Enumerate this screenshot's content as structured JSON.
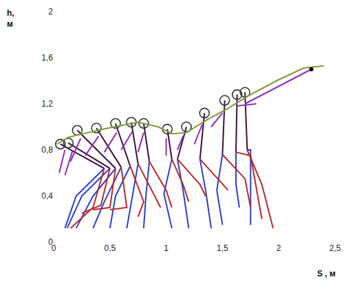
{
  "chart_data": {
    "type": "line",
    "x_label": "S , м",
    "y_label": "h, м",
    "xlim": [
      0,
      2.5
    ],
    "ylim": [
      0,
      2
    ],
    "xticks": [
      0,
      {
        "value": 0.5,
        "label": "0,5"
      },
      1,
      {
        "value": 1.5,
        "label": "1,5"
      },
      2,
      {
        "value": 2.5,
        "label": "2,5"
      }
    ],
    "yticks": [
      0,
      {
        "value": 0.4,
        "label": "0,4"
      },
      {
        "value": 0.8,
        "label": "0,8"
      },
      {
        "value": 1.2,
        "label": "1,2"
      },
      {
        "value": 1.6,
        "label": "1,6"
      },
      2
    ],
    "grid": false,
    "series": [
      {
        "type": "line",
        "color": "#3b0f3b",
        "line_style": "solid",
        "x": [
          0.06,
          0.45,
          null,
          0.13,
          0.5,
          null,
          0.21,
          0.55,
          null,
          0.38,
          0.6,
          null,
          0.55,
          0.68,
          null,
          0.69,
          0.75,
          null,
          0.8,
          0.85,
          null,
          1.01,
          1.05,
          null,
          1.18,
          1.1,
          null,
          1.34,
          1.3,
          null,
          1.52,
          1.5,
          null,
          1.63,
          1.62,
          null,
          1.7,
          1.72
        ],
        "values": [
          0.85,
          0.64,
          null,
          0.86,
          0.64,
          null,
          0.97,
          0.64,
          null,
          0.99,
          0.65,
          null,
          1.03,
          0.66,
          null,
          1.04,
          0.68,
          null,
          1.03,
          0.7,
          null,
          0.98,
          0.72,
          null,
          1.0,
          0.72,
          null,
          1.12,
          0.72,
          null,
          1.23,
          0.76,
          null,
          1.28,
          0.78,
          null,
          1.3,
          0.8
        ]
      },
      {
        "type": "line",
        "color": "#8b2fb8",
        "line_style": "solid",
        "x": [
          0.1,
          0.05,
          null,
          0.17,
          0.1,
          null,
          0.24,
          0.15,
          null,
          0.4,
          0.28,
          null,
          0.56,
          0.45,
          null,
          0.7,
          0.6,
          null,
          0.8,
          0.75,
          null,
          1.0,
          1.0,
          null,
          1.15,
          1.1,
          null,
          1.32,
          1.25,
          null,
          1.5,
          1.4,
          null,
          1.62,
          1.8,
          null,
          1.7,
          2.29
        ],
        "values": [
          0.8,
          0.6,
          null,
          0.8,
          0.58,
          null,
          0.9,
          0.7,
          null,
          0.92,
          0.75,
          null,
          0.95,
          0.78,
          null,
          0.96,
          0.8,
          null,
          0.95,
          0.78,
          null,
          0.9,
          0.75,
          null,
          0.92,
          0.8,
          null,
          1.02,
          0.85,
          null,
          1.12,
          1.0,
          null,
          1.18,
          1.2,
          null,
          1.2,
          1.5
        ]
      },
      {
        "type": "line",
        "color": "#2a3fc4",
        "line_style": "solid",
        "x": [
          0.45,
          0.2,
          0.1,
          null,
          0.5,
          0.25,
          0.12,
          null,
          0.55,
          0.35,
          0.2,
          null,
          0.6,
          0.45,
          0.35,
          null,
          0.68,
          0.55,
          0.5,
          null,
          0.75,
          0.7,
          0.65,
          null,
          0.85,
          0.82,
          0.8,
          null,
          1.05,
          0.98,
          1.05,
          null,
          1.1,
          1.15,
          1.2,
          null,
          1.3,
          1.35,
          1.4,
          null,
          1.5,
          1.45,
          1.5,
          null,
          1.62,
          1.62,
          1.65,
          null,
          1.72,
          1.75,
          1.75
        ],
        "values": [
          0.64,
          0.4,
          0.12,
          null,
          0.64,
          0.4,
          0.12,
          null,
          0.64,
          0.4,
          0.12,
          null,
          0.65,
          0.35,
          0.12,
          null,
          0.66,
          0.4,
          0.12,
          null,
          0.68,
          0.4,
          0.12,
          null,
          0.7,
          0.4,
          0.12,
          null,
          0.72,
          0.42,
          0.12,
          null,
          0.72,
          0.45,
          0.12,
          null,
          0.72,
          0.45,
          0.12,
          null,
          0.76,
          0.45,
          0.15,
          null,
          0.78,
          0.5,
          0.3,
          null,
          0.8,
          0.8,
          0.15
        ]
      },
      {
        "type": "line",
        "color": "#b8282a",
        "line_style": "solid",
        "x": [
          0.45,
          0.35,
          0.15,
          null,
          0.5,
          0.42,
          0.25,
          null,
          0.55,
          0.5,
          0.35,
          null,
          0.6,
          0.65,
          0.5,
          null,
          0.68,
          0.8,
          0.75,
          null,
          0.75,
          0.9,
          0.95,
          null,
          0.85,
          1.0,
          1.05,
          null,
          1.05,
          1.15,
          1.2,
          null,
          1.1,
          1.3,
          1.35,
          null,
          1.3,
          1.5,
          1.55,
          null,
          1.5,
          1.7,
          1.75,
          null,
          1.62,
          1.75,
          1.85,
          null,
          1.72,
          1.85,
          1.95
        ],
        "values": [
          0.64,
          0.3,
          0.12,
          null,
          0.64,
          0.32,
          0.25,
          null,
          0.64,
          0.3,
          0.28,
          null,
          0.65,
          0.3,
          0.28,
          null,
          0.66,
          0.35,
          0.22,
          null,
          0.68,
          0.4,
          0.3,
          null,
          0.7,
          0.45,
          0.3,
          null,
          0.72,
          0.5,
          0.35,
          null,
          0.72,
          0.5,
          0.4,
          null,
          0.72,
          0.5,
          0.45,
          null,
          0.76,
          0.55,
          0.3,
          null,
          0.78,
          0.75,
          0.2,
          null,
          0.8,
          0.5,
          0.12
        ]
      },
      {
        "type": "scatter",
        "color": "#333333",
        "marker": "circle-open",
        "x": [
          0.06,
          0.13,
          0.21,
          0.38,
          0.55,
          0.69,
          0.8,
          1.01,
          1.18,
          1.34,
          1.52,
          1.63,
          1.7
        ],
        "values": [
          0.85,
          0.86,
          0.97,
          0.99,
          1.03,
          1.04,
          1.03,
          0.98,
          1.0,
          1.12,
          1.23,
          1.28,
          1.3
        ]
      },
      {
        "type": "line",
        "color": "#7a9a3a",
        "line_style": "solid",
        "x": [
          0.03,
          0.13,
          0.44,
          0.75,
          0.93,
          1.05,
          1.18,
          1.36,
          1.55,
          1.73,
          1.98,
          2.22,
          2.4
        ],
        "values": [
          0.85,
          0.91,
          0.98,
          1.04,
          1.0,
          0.94,
          0.95,
          1.06,
          1.16,
          1.27,
          1.4,
          1.51,
          1.53
        ]
      },
      {
        "type": "scatter",
        "color": "#000000",
        "marker": "circle",
        "x": [
          2.29
        ],
        "values": [
          1.5
        ]
      }
    ]
  }
}
